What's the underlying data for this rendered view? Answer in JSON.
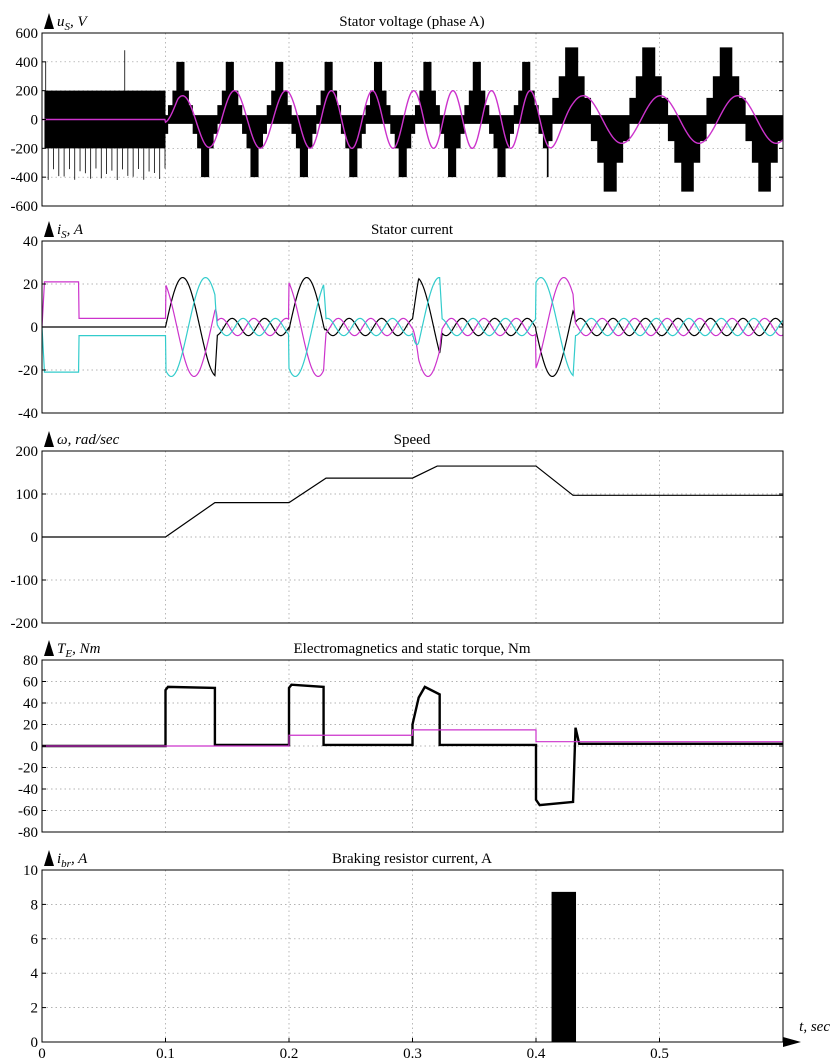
{
  "figure": {
    "xaxis": {
      "label": "t, sec",
      "xlim": [
        0,
        0.6
      ],
      "ticks": [
        0,
        0.1,
        0.2,
        0.3,
        0.4,
        0.5
      ],
      "tick_labels": [
        "0",
        "0.1",
        "0.2",
        "0.3",
        "0.4",
        "0.5"
      ]
    }
  },
  "chart_data": [
    {
      "id": "voltage",
      "type": "line",
      "title": "Stator voltage (phase A)",
      "ylabel_main": "u",
      "ylabel_sub": "S",
      "ylabel_rest": ", V",
      "ylim": [
        -600,
        600
      ],
      "yticks": [
        -600,
        -400,
        -200,
        0,
        200,
        400,
        600
      ],
      "grid": true,
      "pwm_segments": [
        {
          "t0": 0.002,
          "t1": 0.1,
          "hi": 200,
          "lo": -200,
          "spike": -420,
          "kind": "two-level"
        },
        {
          "t0": 0.1,
          "t1": 0.41,
          "fund_amp": 200,
          "freq": 25,
          "levels": [
            100,
            200,
            400
          ],
          "kind": "six-step"
        },
        {
          "t0": 0.41,
          "t1": 0.6,
          "fund_amp": 165,
          "freq": 16,
          "levels": [
            150,
            300,
            500
          ],
          "kind": "six-step"
        }
      ],
      "series": [
        {
          "color": "#000000",
          "role": "pwm",
          "values": []
        },
        {
          "color": "#cc33cc",
          "role": "fundamental",
          "amplitude_envelope": [
            [
              0,
              0
            ],
            [
              0.1,
              0
            ],
            [
              0.1,
              60
            ],
            [
              0.11,
              160
            ],
            [
              0.14,
              200
            ],
            [
              0.41,
              200
            ],
            [
              0.43,
              165
            ],
            [
              0.6,
              165
            ]
          ],
          "frequency_envelope": [
            [
              0.1,
              22
            ],
            [
              0.14,
              24
            ],
            [
              0.2,
              24
            ],
            [
              0.23,
              30
            ],
            [
              0.3,
              30
            ],
            [
              0.32,
              32
            ],
            [
              0.4,
              32
            ],
            [
              0.43,
              16
            ],
            [
              0.6,
              16
            ]
          ]
        }
      ]
    },
    {
      "id": "current",
      "type": "line",
      "title": "Stator current",
      "ylabel_main": "i",
      "ylabel_sub": "S",
      "ylabel_rest": ", A",
      "ylim": [
        -40,
        40
      ],
      "yticks": [
        -40,
        -20,
        0,
        20,
        40
      ],
      "grid": true,
      "series": [
        {
          "color": "#000000",
          "phase_deg": 0
        },
        {
          "color": "#cc33cc",
          "phase_deg": 120
        },
        {
          "color": "#33cccc",
          "phase_deg": 240
        }
      ],
      "dc_stage": {
        "t0": 0,
        "t1": 0.1,
        "values": [
          0,
          21,
          -21
        ],
        "settled": [
          0,
          4,
          -4
        ],
        "settle_t": 0.03
      },
      "amplitude_envelope": [
        [
          0.1,
          23
        ],
        [
          0.14,
          23
        ],
        [
          0.142,
          4
        ],
        [
          0.2,
          4
        ],
        [
          0.2,
          23
        ],
        [
          0.228,
          23
        ],
        [
          0.23,
          4
        ],
        [
          0.3,
          4
        ],
        [
          0.305,
          23
        ],
        [
          0.322,
          23
        ],
        [
          0.324,
          4
        ],
        [
          0.4,
          4
        ],
        [
          0.4,
          23
        ],
        [
          0.43,
          23
        ],
        [
          0.432,
          4
        ],
        [
          0.6,
          4
        ]
      ]
    },
    {
      "id": "speed",
      "type": "line",
      "title": "Speed",
      "ylabel_main": "ω",
      "ylabel_sub": "",
      "ylabel_rest": ", rad/sec",
      "ylim": [
        -200,
        200
      ],
      "yticks": [
        -200,
        -100,
        0,
        100,
        200
      ],
      "grid": true,
      "series": [
        {
          "color": "#000000",
          "x": [
            0,
            0.1,
            0.14,
            0.2,
            0.23,
            0.3,
            0.32,
            0.4,
            0.43,
            0.6
          ],
          "y": [
            0,
            0,
            80,
            80,
            137,
            137,
            165,
            165,
            97,
            97
          ]
        }
      ]
    },
    {
      "id": "torque",
      "type": "line",
      "title": "Electromagnetics and static torque, Nm",
      "ylabel_main": "T",
      "ylabel_sub": "E",
      "ylabel_rest": ", Nm",
      "ylim": [
        -80,
        80
      ],
      "yticks": [
        -80,
        -60,
        -40,
        -20,
        0,
        20,
        40,
        60,
        80
      ],
      "grid": true,
      "series": [
        {
          "color": "#000000",
          "role": "electromagnetic",
          "x": [
            0,
            0.1,
            0.1,
            0.102,
            0.14,
            0.14,
            0.2,
            0.2,
            0.202,
            0.228,
            0.228,
            0.3,
            0.3,
            0.305,
            0.31,
            0.322,
            0.322,
            0.4,
            0.4,
            0.403,
            0.43,
            0.432,
            0.435,
            0.6
          ],
          "y": [
            0,
            0,
            52,
            55,
            54,
            1,
            1,
            54,
            57,
            55,
            1,
            1,
            20,
            45,
            55,
            48,
            1,
            1,
            -50,
            -55,
            -52,
            17,
            2,
            2
          ]
        },
        {
          "color": "#cc33cc",
          "role": "static",
          "x": [
            0,
            0.2,
            0.2,
            0.3,
            0.3,
            0.4,
            0.4,
            0.6
          ],
          "y": [
            0,
            0,
            10,
            10,
            15,
            15,
            4,
            4
          ]
        }
      ]
    },
    {
      "id": "braking",
      "type": "area",
      "title": "Braking resistor current, A",
      "ylabel_main": "i",
      "ylabel_sub": "br",
      "ylabel_rest": ", A",
      "ylim": [
        0,
        10
      ],
      "yticks": [
        0,
        2,
        4,
        6,
        8,
        10
      ],
      "grid": true,
      "series": [
        {
          "color": "#000000",
          "x": [
            0,
            0.413,
            0.413,
            0.432,
            0.432,
            0.6
          ],
          "y": [
            0,
            0,
            8.7,
            8.7,
            0,
            0
          ]
        }
      ]
    }
  ]
}
